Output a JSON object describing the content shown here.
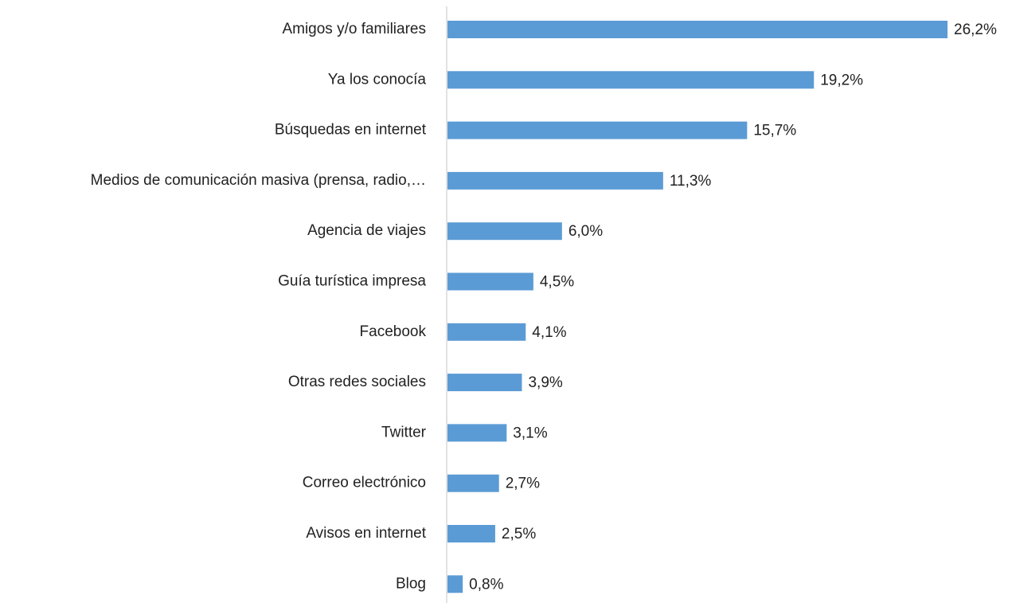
{
  "chart_data": {
    "type": "bar",
    "orientation": "horizontal",
    "categories": [
      "Amigos y/o familiares",
      "Ya los conocía",
      "Búsquedas en internet",
      "Medios de comunicación masiva (prensa, radio,…",
      "Agencia de viajes",
      "Guía turística impresa",
      "Facebook",
      "Otras redes sociales",
      "Twitter",
      "Correo electrónico",
      "Avisos en internet",
      "Blog"
    ],
    "values": [
      26.2,
      19.2,
      15.7,
      11.3,
      6.0,
      4.5,
      4.1,
      3.9,
      3.1,
      2.7,
      2.5,
      0.8
    ],
    "value_labels": [
      "26,2%",
      "19,2%",
      "15,7%",
      "11,3%",
      "6,0%",
      "4,5%",
      "4,1%",
      "3,9%",
      "3,1%",
      "2,7%",
      "2,5%",
      "0,8%"
    ],
    "color": "#5b9bd5"
  }
}
